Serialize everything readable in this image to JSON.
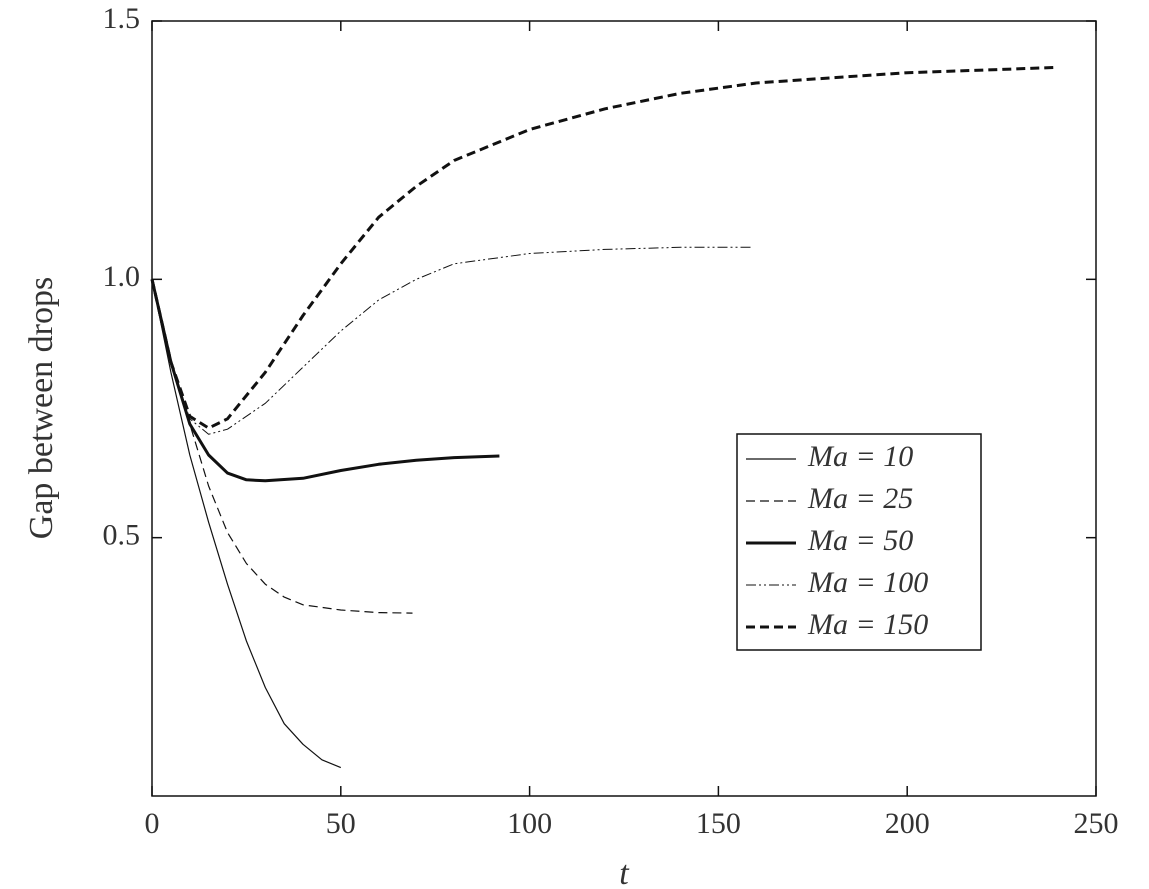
{
  "chart_data": {
    "type": "line",
    "x_label": "t",
    "y_label": "Gap between drops",
    "xlim": [
      0,
      250
    ],
    "xticks": [
      0,
      50,
      100,
      150,
      200,
      250
    ],
    "ylim": [
      0,
      1.5
    ],
    "yticks": [
      0.5,
      {
        "value": 1,
        "label": "1.0"
      },
      1.5
    ],
    "legend": "center-right",
    "series": [
      {
        "name": "Ma = 10",
        "color": "#111111",
        "line_style": "solid",
        "line_width": 1.2,
        "x": [
          0,
          5,
          10,
          15,
          20,
          25,
          30,
          35,
          40,
          45,
          50
        ],
        "values": [
          1.0,
          0.82,
          0.66,
          0.53,
          0.41,
          0.3,
          0.21,
          0.14,
          0.1,
          0.07,
          0.055
        ]
      },
      {
        "name": "Ma = 25",
        "color": "#111111",
        "line_style": "dashed",
        "line_width": 1.2,
        "x": [
          0,
          5,
          10,
          15,
          20,
          25,
          30,
          35,
          40,
          50,
          60,
          69
        ],
        "values": [
          1.0,
          0.84,
          0.72,
          0.6,
          0.51,
          0.45,
          0.41,
          0.385,
          0.37,
          0.36,
          0.355,
          0.354
        ]
      },
      {
        "name": "Ma = 50",
        "color": "#111111",
        "line_style": "solid",
        "line_width": 3,
        "x": [
          0,
          5,
          10,
          15,
          20,
          25,
          30,
          40,
          50,
          60,
          70,
          80,
          92
        ],
        "values": [
          1.0,
          0.84,
          0.72,
          0.66,
          0.625,
          0.612,
          0.61,
          0.615,
          0.63,
          0.642,
          0.65,
          0.655,
          0.658
        ]
      },
      {
        "name": "Ma = 100",
        "color": "#111111",
        "line_style": "dashdotdot",
        "line_width": 1,
        "x": [
          0,
          5,
          10,
          15,
          20,
          30,
          40,
          50,
          60,
          70,
          80,
          100,
          120,
          140,
          159
        ],
        "values": [
          1.0,
          0.84,
          0.73,
          0.7,
          0.71,
          0.76,
          0.83,
          0.9,
          0.96,
          1.0,
          1.03,
          1.05,
          1.058,
          1.062,
          1.062
        ]
      },
      {
        "name": "Ma = 150",
        "color": "#111111",
        "line_style": "dashed",
        "line_width": 3,
        "x": [
          0,
          5,
          10,
          15,
          20,
          30,
          40,
          50,
          60,
          70,
          80,
          100,
          120,
          140,
          160,
          180,
          200,
          220,
          239
        ],
        "values": [
          1.0,
          0.84,
          0.735,
          0.712,
          0.73,
          0.82,
          0.93,
          1.03,
          1.12,
          1.18,
          1.23,
          1.29,
          1.33,
          1.36,
          1.38,
          1.39,
          1.4,
          1.405,
          1.41
        ]
      }
    ]
  }
}
